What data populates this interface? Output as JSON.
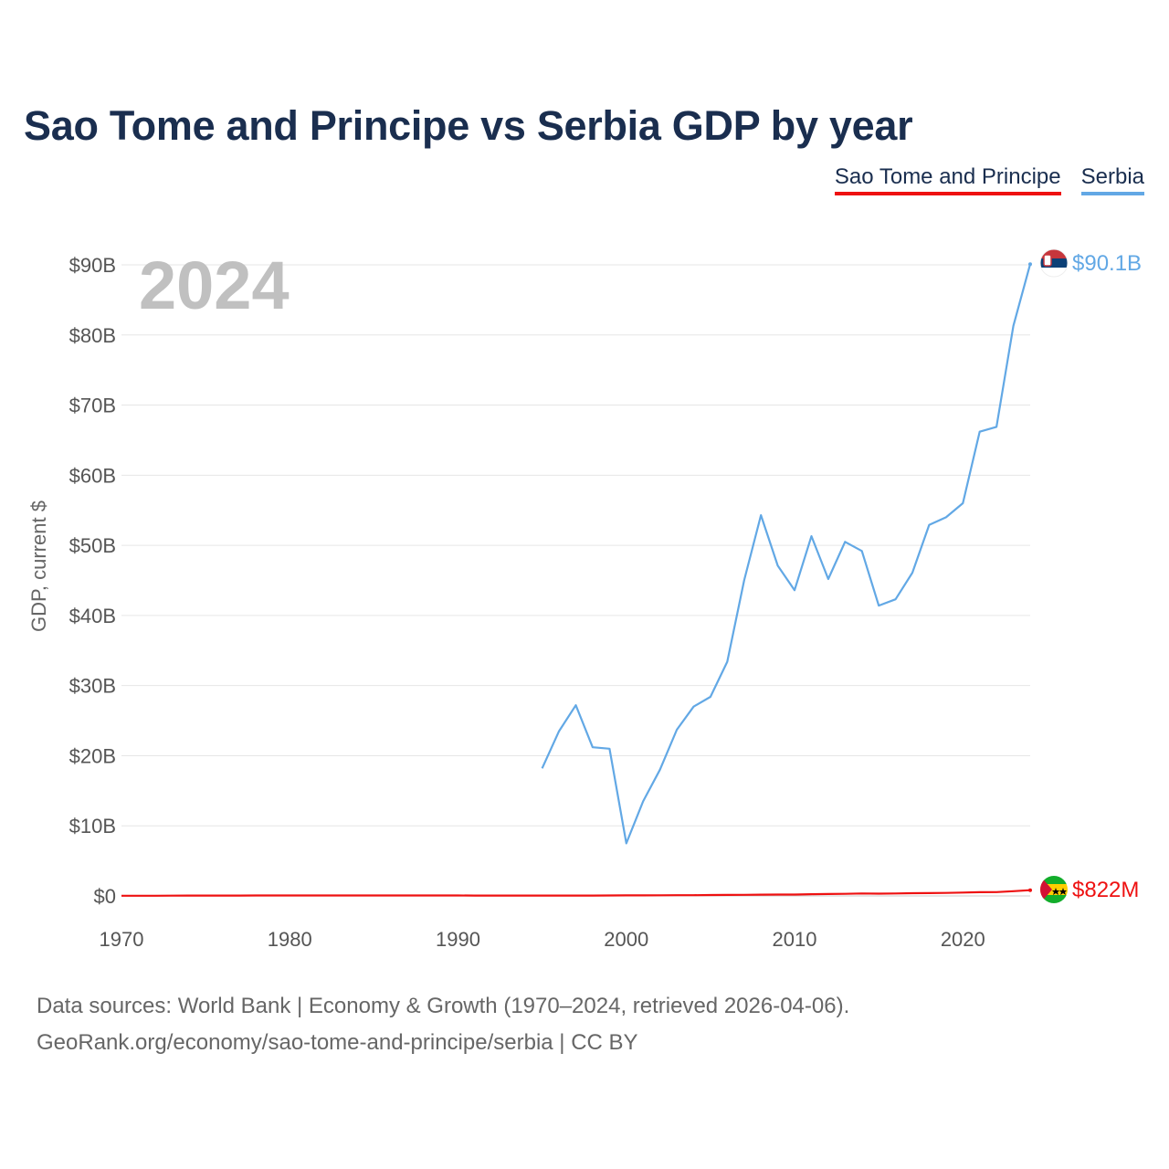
{
  "title": "Sao Tome and Principe vs Serbia GDP by year",
  "year_display": "2024",
  "legend": [
    {
      "name": "Sao Tome and Principe",
      "color": "#ee1111"
    },
    {
      "name": "Serbia",
      "color": "#62a8e5"
    }
  ],
  "source_line1": "Data sources: World Bank | Economy & Growth (1970–2024, retrieved 2026-04-06).",
  "source_line2": "GeoRank.org/economy/sao-tome-and-principe/serbia | CC BY",
  "chart_data": {
    "type": "line",
    "title": "Sao Tome and Principe vs Serbia GDP by year",
    "xlabel": "",
    "ylabel": "GDP, current $",
    "xlim": [
      1970,
      2024
    ],
    "ylim": [
      0,
      90
    ],
    "y_unit": "billion current US$",
    "x_ticks": [
      1970,
      1980,
      1990,
      2000,
      2010,
      2020
    ],
    "x_tick_labels": [
      "1970",
      "1980",
      "1990",
      "2000",
      "2010",
      "2020"
    ],
    "y_ticks": [
      0,
      10,
      20,
      30,
      40,
      50,
      60,
      70,
      80,
      90
    ],
    "y_tick_labels": [
      "$0",
      "$10B",
      "$20B",
      "$30B",
      "$40B",
      "$50B",
      "$60B",
      "$70B",
      "$80B",
      "$90B"
    ],
    "grid": true,
    "series": [
      {
        "name": "Sao Tome and Principe",
        "color": "#ee1111",
        "end_label": "$822M",
        "x": [
          1970,
          1971,
          1972,
          1973,
          1974,
          1975,
          1976,
          1977,
          1978,
          1979,
          1980,
          1981,
          1982,
          1983,
          1984,
          1985,
          1986,
          1987,
          1988,
          1989,
          1990,
          1991,
          1992,
          1993,
          1994,
          1995,
          1996,
          1997,
          1998,
          1999,
          2000,
          2001,
          2002,
          2003,
          2004,
          2005,
          2006,
          2007,
          2008,
          2009,
          2010,
          2011,
          2012,
          2013,
          2014,
          2015,
          2016,
          2017,
          2018,
          2019,
          2020,
          2021,
          2022,
          2023,
          2024
        ],
        "values": [
          0.02,
          0.02,
          0.03,
          0.04,
          0.05,
          0.05,
          0.05,
          0.05,
          0.06,
          0.06,
          0.06,
          0.07,
          0.07,
          0.06,
          0.06,
          0.07,
          0.07,
          0.07,
          0.07,
          0.06,
          0.06,
          0.05,
          0.05,
          0.05,
          0.05,
          0.05,
          0.05,
          0.05,
          0.05,
          0.06,
          0.08,
          0.08,
          0.09,
          0.1,
          0.11,
          0.13,
          0.14,
          0.15,
          0.18,
          0.2,
          0.2,
          0.25,
          0.27,
          0.3,
          0.35,
          0.32,
          0.35,
          0.39,
          0.41,
          0.43,
          0.48,
          0.53,
          0.55,
          0.68,
          0.822
        ]
      },
      {
        "name": "Serbia",
        "color": "#62a8e5",
        "end_label": "$90.1B",
        "x": [
          1995,
          1996,
          1997,
          1998,
          1999,
          2000,
          2001,
          2002,
          2003,
          2004,
          2005,
          2006,
          2007,
          2008,
          2009,
          2010,
          2011,
          2012,
          2013,
          2014,
          2015,
          2016,
          2017,
          2018,
          2019,
          2020,
          2021,
          2022,
          2023,
          2024
        ],
        "values": [
          18.2,
          23.5,
          27.2,
          21.2,
          21.0,
          7.5,
          13.5,
          18.0,
          23.7,
          27.0,
          28.4,
          33.4,
          45.0,
          54.3,
          47.1,
          43.6,
          51.3,
          45.2,
          50.5,
          49.2,
          41.4,
          42.3,
          46.1,
          52.9,
          54.0,
          56.0,
          66.2,
          66.9,
          81.3,
          90.1
        ]
      }
    ]
  }
}
